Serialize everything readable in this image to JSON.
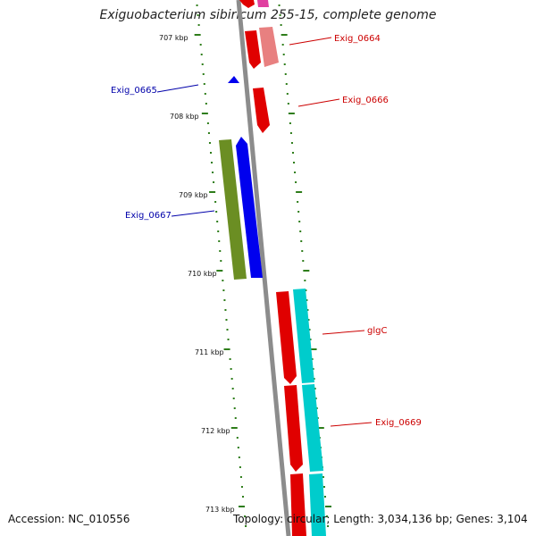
{
  "title": "Exiguobacterium sibiricum 255-15, complete genome",
  "footer": {
    "accession": "Accession: NC_010556",
    "summary": "Topology: circular; Length: 3,034,136 bp; Genes: 3,104"
  },
  "colors": {
    "backbone": "#8c8c8c",
    "ticks": "#2e7d1a",
    "red_feature": "#e00000",
    "pink_feature": "#e88080",
    "magenta_feature": "#e040a0",
    "blue_feature": "#0000ee",
    "olive_feature": "#6b8e23",
    "cyan_feature": "#00cccc",
    "label_red": "#cc0000",
    "label_blue": "#0000aa"
  },
  "ticks": [
    "707 kbp",
    "708 kbp",
    "709 kbp",
    "710 kbp",
    "711 kbp",
    "712 kbp",
    "713 kbp"
  ],
  "gene_labels": [
    "Exig_0664",
    "Exig_0665",
    "Exig_0666",
    "Exig_0667",
    "glgC",
    "Exig_0669"
  ]
}
